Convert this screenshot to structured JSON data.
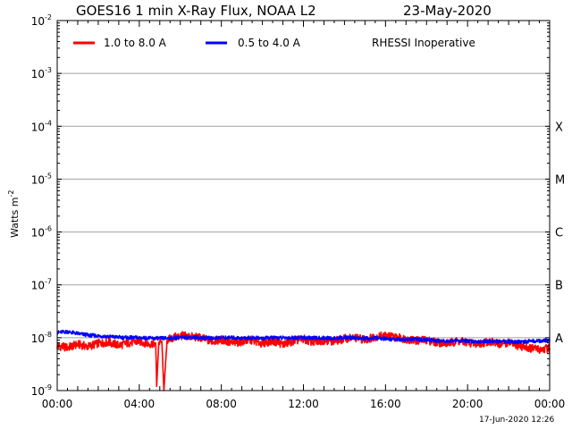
{
  "chart_data": {
    "type": "line",
    "title": "GOES16 1 min X-Ray Flux, NOAA L2",
    "date": "23-May-2020",
    "ylabel_main": "Watts m",
    "ylabel_sup": "-2",
    "xlabel": "",
    "x_ticks": [
      "00:00",
      "04:00",
      "08:00",
      "12:00",
      "16:00",
      "20:00",
      "00:00"
    ],
    "x_range_hours": [
      0,
      24
    ],
    "y_scale": "log",
    "y_range": [
      1e-09,
      0.01
    ],
    "y_ticks": [
      {
        "base": "10",
        "exp": "-2",
        "value": 0.01
      },
      {
        "base": "10",
        "exp": "-3",
        "value": 0.001
      },
      {
        "base": "10",
        "exp": "-4",
        "value": 0.0001
      },
      {
        "base": "10",
        "exp": "-5",
        "value": 1e-05
      },
      {
        "base": "10",
        "exp": "-6",
        "value": 1e-06
      },
      {
        "base": "10",
        "exp": "-7",
        "value": 1e-07
      },
      {
        "base": "10",
        "exp": "-8",
        "value": 1e-08
      },
      {
        "base": "10",
        "exp": "-9",
        "value": 1e-09
      }
    ],
    "flare_classes": [
      {
        "label": "X",
        "value": 0.0001
      },
      {
        "label": "M",
        "value": 1e-05
      },
      {
        "label": "C",
        "value": 1e-06
      },
      {
        "label": "B",
        "value": 1e-07
      },
      {
        "label": "A",
        "value": 1e-08
      }
    ],
    "grid": true,
    "legend_position": "top",
    "note": "RHESSI Inoperative",
    "footer": "17-Jun-2020 12:26",
    "series": [
      {
        "name": "1.0 to 8.0 A",
        "color": "#ff0000",
        "points": [
          [
            0,
            7e-09
          ],
          [
            0.5,
            6.5e-09
          ],
          [
            1.0,
            7.5e-09
          ],
          [
            1.5,
            6.8e-09
          ],
          [
            2.0,
            7.8e-09
          ],
          [
            2.5,
            8.2e-09
          ],
          [
            3.0,
            7.2e-09
          ],
          [
            3.5,
            8e-09
          ],
          [
            4.0,
            8.5e-09
          ],
          [
            4.5,
            7.6e-09
          ],
          [
            4.8,
            8e-09
          ],
          [
            4.85,
            1.2e-09
          ],
          [
            4.95,
            8.2e-09
          ],
          [
            5.1,
            8.5e-09
          ],
          [
            5.2,
            1e-09
          ],
          [
            5.35,
            9e-09
          ],
          [
            5.5,
            9.5e-09
          ],
          [
            6.0,
            1.1e-08
          ],
          [
            6.5,
            1.05e-08
          ],
          [
            7.0,
            1e-08
          ],
          [
            7.5,
            8.5e-09
          ],
          [
            8.0,
            9.2e-09
          ],
          [
            8.5,
            7.8e-09
          ],
          [
            9.0,
            8.5e-09
          ],
          [
            9.5,
            9e-09
          ],
          [
            10.0,
            7.8e-09
          ],
          [
            10.5,
            8.8e-09
          ],
          [
            11.0,
            7.5e-09
          ],
          [
            11.5,
            8.6e-09
          ],
          [
            12.0,
            9.4e-09
          ],
          [
            12.5,
            8.2e-09
          ],
          [
            13.0,
            9e-09
          ],
          [
            13.5,
            8.6e-09
          ],
          [
            14.0,
            9.6e-09
          ],
          [
            14.5,
            1e-08
          ],
          [
            15.0,
            9.2e-09
          ],
          [
            15.5,
            1.05e-08
          ],
          [
            16.0,
            1.1e-08
          ],
          [
            16.5,
            1.02e-08
          ],
          [
            17.0,
            9.5e-09
          ],
          [
            17.5,
            8.8e-09
          ],
          [
            18.0,
            9e-09
          ],
          [
            18.5,
            8.2e-09
          ],
          [
            19.0,
            7.8e-09
          ],
          [
            19.5,
            8.6e-09
          ],
          [
            20.0,
            8.2e-09
          ],
          [
            20.5,
            7.4e-09
          ],
          [
            21.0,
            8.6e-09
          ],
          [
            21.5,
            7.6e-09
          ],
          [
            22.0,
            8e-09
          ],
          [
            22.5,
            7e-09
          ],
          [
            23.0,
            6.4e-09
          ],
          [
            23.5,
            6e-09
          ],
          [
            24.0,
            6.4e-09
          ]
        ]
      },
      {
        "name": "0.5 to 4.0 A",
        "color": "#0000ff",
        "points": [
          [
            0,
            1.25e-08
          ],
          [
            0.5,
            1.3e-08
          ],
          [
            1.0,
            1.2e-08
          ],
          [
            1.5,
            1.12e-08
          ],
          [
            2.0,
            1.08e-08
          ],
          [
            2.5,
            1.05e-08
          ],
          [
            3.0,
            1.02e-08
          ],
          [
            3.5,
            1e-08
          ],
          [
            4.0,
            1e-08
          ],
          [
            4.5,
            9.8e-09
          ],
          [
            5.0,
            9.7e-09
          ],
          [
            5.5,
            9.8e-09
          ],
          [
            6.0,
            1e-08
          ],
          [
            6.5,
            1.02e-08
          ],
          [
            7.0,
            1e-08
          ],
          [
            7.5,
            9.8e-09
          ],
          [
            8.0,
            1e-08
          ],
          [
            8.5,
            1e-08
          ],
          [
            9.0,
            9.8e-09
          ],
          [
            9.5,
            1e-08
          ],
          [
            10.0,
            9.7e-09
          ],
          [
            10.5,
            1e-08
          ],
          [
            11.0,
            9.9e-09
          ],
          [
            11.5,
            1e-08
          ],
          [
            12.0,
            1e-08
          ],
          [
            12.5,
            9.8e-09
          ],
          [
            13.0,
            9.9e-09
          ],
          [
            13.5,
            9.7e-09
          ],
          [
            14.0,
            1e-08
          ],
          [
            14.5,
            9.9e-09
          ],
          [
            15.0,
            9.6e-09
          ],
          [
            15.5,
            9.8e-09
          ],
          [
            16.0,
            9.5e-09
          ],
          [
            16.5,
            9.3e-09
          ],
          [
            17.0,
            9.2e-09
          ],
          [
            17.5,
            9.4e-09
          ],
          [
            18.0,
            9e-09
          ],
          [
            18.5,
            8.8e-09
          ],
          [
            19.0,
            8.7e-09
          ],
          [
            19.5,
            8.8e-09
          ],
          [
            20.0,
            8.6e-09
          ],
          [
            20.5,
            8.5e-09
          ],
          [
            21.0,
            8.6e-09
          ],
          [
            21.5,
            8.4e-09
          ],
          [
            22.0,
            8.5e-09
          ],
          [
            22.5,
            8.3e-09
          ],
          [
            23.0,
            8.5e-09
          ],
          [
            23.5,
            8.7e-09
          ],
          [
            24.0,
            9e-09
          ]
        ]
      }
    ]
  }
}
